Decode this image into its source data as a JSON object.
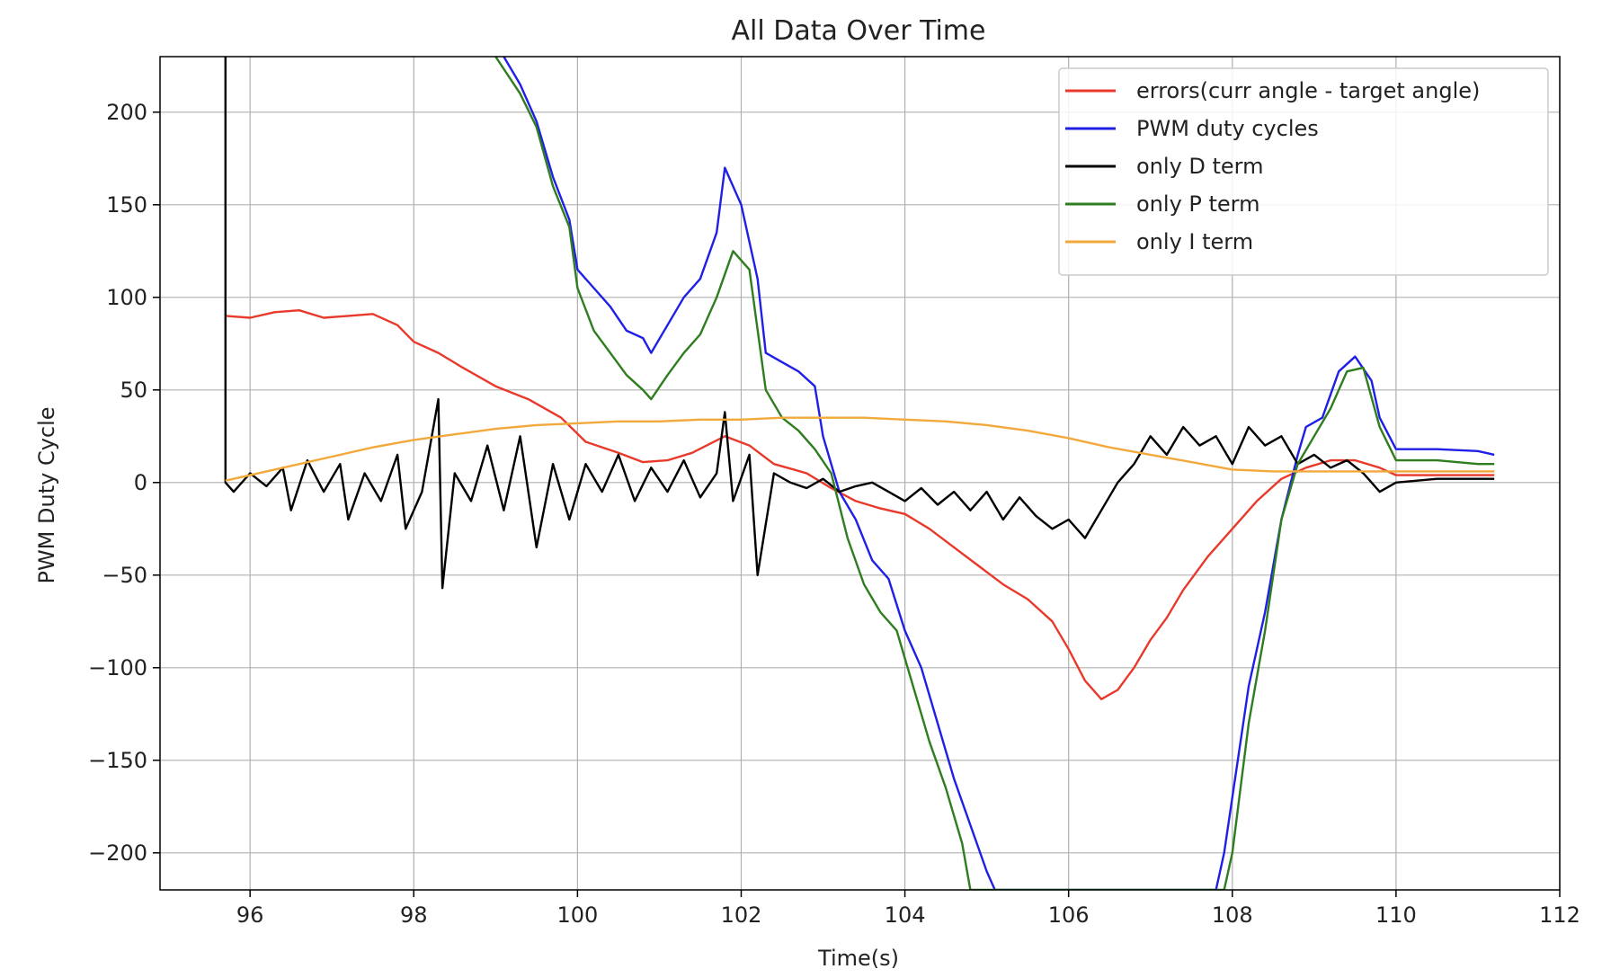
{
  "chart_data": {
    "type": "line",
    "title": "All Data Over Time",
    "xlabel": "Time(s)",
    "ylabel": "PWM Duty Cycle",
    "xlim": [
      94.9,
      112.0
    ],
    "ylim": [
      -220,
      230
    ],
    "xticks": [
      96,
      98,
      100,
      102,
      104,
      106,
      108,
      110,
      112
    ],
    "yticks": [
      200,
      150,
      100,
      50,
      0,
      -50,
      -100,
      -150,
      -200
    ],
    "ytick_labels": [
      "200",
      "150",
      "100",
      "50",
      "0",
      "−50",
      "−100",
      "−150",
      "−200"
    ],
    "grid": true,
    "legend_position": "top-right",
    "series": [
      {
        "name": "errors(curr angle - target angle)",
        "color": "#e8392b",
        "points": [
          [
            95.7,
            90
          ],
          [
            96.0,
            89
          ],
          [
            96.3,
            92
          ],
          [
            96.6,
            93
          ],
          [
            96.9,
            89
          ],
          [
            97.2,
            90
          ],
          [
            97.5,
            91
          ],
          [
            97.8,
            85
          ],
          [
            98.0,
            76
          ],
          [
            98.3,
            70
          ],
          [
            98.6,
            62
          ],
          [
            99.0,
            52
          ],
          [
            99.4,
            45
          ],
          [
            99.8,
            35
          ],
          [
            100.1,
            22
          ],
          [
            100.5,
            16
          ],
          [
            100.8,
            11
          ],
          [
            101.1,
            12
          ],
          [
            101.4,
            16
          ],
          [
            101.8,
            25
          ],
          [
            102.1,
            20
          ],
          [
            102.4,
            10
          ],
          [
            102.8,
            5
          ],
          [
            103.1,
            -3
          ],
          [
            103.4,
            -10
          ],
          [
            103.7,
            -14
          ],
          [
            104.0,
            -17
          ],
          [
            104.3,
            -25
          ],
          [
            104.6,
            -35
          ],
          [
            104.9,
            -45
          ],
          [
            105.2,
            -55
          ],
          [
            105.5,
            -63
          ],
          [
            105.8,
            -75
          ],
          [
            106.0,
            -90
          ],
          [
            106.2,
            -107
          ],
          [
            106.4,
            -117
          ],
          [
            106.6,
            -112
          ],
          [
            106.8,
            -100
          ],
          [
            107.0,
            -85
          ],
          [
            107.2,
            -73
          ],
          [
            107.4,
            -58
          ],
          [
            107.7,
            -40
          ],
          [
            108.0,
            -25
          ],
          [
            108.3,
            -10
          ],
          [
            108.6,
            2
          ],
          [
            108.9,
            8
          ],
          [
            109.2,
            12
          ],
          [
            109.5,
            12
          ],
          [
            109.8,
            8
          ],
          [
            110.0,
            4
          ],
          [
            110.5,
            4
          ],
          [
            111.0,
            4
          ],
          [
            111.2,
            4
          ]
        ]
      },
      {
        "name": "PWM duty cycles",
        "color": "#1f1fe6",
        "points": [
          [
            99.1,
            230
          ],
          [
            99.3,
            215
          ],
          [
            99.5,
            195
          ],
          [
            99.7,
            165
          ],
          [
            99.9,
            142
          ],
          [
            100.0,
            115
          ],
          [
            100.2,
            105
          ],
          [
            100.4,
            95
          ],
          [
            100.6,
            82
          ],
          [
            100.8,
            78
          ],
          [
            100.9,
            70
          ],
          [
            101.1,
            85
          ],
          [
            101.3,
            100
          ],
          [
            101.5,
            110
          ],
          [
            101.7,
            135
          ],
          [
            101.8,
            170
          ],
          [
            102.0,
            150
          ],
          [
            102.2,
            110
          ],
          [
            102.3,
            70
          ],
          [
            102.5,
            65
          ],
          [
            102.7,
            60
          ],
          [
            102.9,
            52
          ],
          [
            103.0,
            25
          ],
          [
            103.2,
            -5
          ],
          [
            103.4,
            -20
          ],
          [
            103.6,
            -42
          ],
          [
            103.8,
            -52
          ],
          [
            104.0,
            -80
          ],
          [
            104.2,
            -100
          ],
          [
            104.4,
            -130
          ],
          [
            104.6,
            -160
          ],
          [
            104.8,
            -185
          ],
          [
            105.0,
            -210
          ],
          [
            105.1,
            -220
          ],
          [
            107.8,
            -220
          ],
          [
            107.9,
            -200
          ],
          [
            108.0,
            -170
          ],
          [
            108.2,
            -110
          ],
          [
            108.4,
            -70
          ],
          [
            108.6,
            -20
          ],
          [
            108.8,
            15
          ],
          [
            108.9,
            30
          ],
          [
            109.1,
            35
          ],
          [
            109.3,
            60
          ],
          [
            109.5,
            68
          ],
          [
            109.7,
            55
          ],
          [
            109.8,
            35
          ],
          [
            110.0,
            18
          ],
          [
            110.5,
            18
          ],
          [
            111.0,
            17
          ],
          [
            111.2,
            15
          ]
        ]
      },
      {
        "name": "only D term",
        "color": "#000000",
        "points": [
          [
            95.7,
            230
          ],
          [
            95.7,
            0
          ],
          [
            95.8,
            -5
          ],
          [
            96.0,
            5
          ],
          [
            96.2,
            -2
          ],
          [
            96.4,
            8
          ],
          [
            96.5,
            -15
          ],
          [
            96.7,
            12
          ],
          [
            96.9,
            -5
          ],
          [
            97.1,
            10
          ],
          [
            97.2,
            -20
          ],
          [
            97.4,
            5
          ],
          [
            97.6,
            -10
          ],
          [
            97.8,
            15
          ],
          [
            97.9,
            -25
          ],
          [
            98.1,
            -5
          ],
          [
            98.3,
            45
          ],
          [
            98.35,
            -57
          ],
          [
            98.5,
            5
          ],
          [
            98.7,
            -10
          ],
          [
            98.9,
            20
          ],
          [
            99.1,
            -15
          ],
          [
            99.3,
            25
          ],
          [
            99.5,
            -35
          ],
          [
            99.7,
            10
          ],
          [
            99.9,
            -20
          ],
          [
            100.1,
            10
          ],
          [
            100.3,
            -5
          ],
          [
            100.5,
            15
          ],
          [
            100.7,
            -10
          ],
          [
            100.9,
            8
          ],
          [
            101.1,
            -5
          ],
          [
            101.3,
            12
          ],
          [
            101.5,
            -8
          ],
          [
            101.7,
            5
          ],
          [
            101.8,
            38
          ],
          [
            101.9,
            -10
          ],
          [
            102.1,
            15
          ],
          [
            102.2,
            -50
          ],
          [
            102.4,
            5
          ],
          [
            102.6,
            0
          ],
          [
            102.8,
            -3
          ],
          [
            103.0,
            2
          ],
          [
            103.2,
            -5
          ],
          [
            103.4,
            -2
          ],
          [
            103.6,
            0
          ],
          [
            103.8,
            -5
          ],
          [
            104.0,
            -10
          ],
          [
            104.2,
            -3
          ],
          [
            104.4,
            -12
          ],
          [
            104.6,
            -5
          ],
          [
            104.8,
            -15
          ],
          [
            105.0,
            -5
          ],
          [
            105.2,
            -20
          ],
          [
            105.4,
            -8
          ],
          [
            105.6,
            -18
          ],
          [
            105.8,
            -25
          ],
          [
            106.0,
            -20
          ],
          [
            106.2,
            -30
          ],
          [
            106.4,
            -15
          ],
          [
            106.6,
            0
          ],
          [
            106.8,
            10
          ],
          [
            107.0,
            25
          ],
          [
            107.2,
            15
          ],
          [
            107.4,
            30
          ],
          [
            107.6,
            20
          ],
          [
            107.8,
            25
          ],
          [
            108.0,
            10
          ],
          [
            108.2,
            30
          ],
          [
            108.4,
            20
          ],
          [
            108.6,
            25
          ],
          [
            108.8,
            10
          ],
          [
            109.0,
            15
          ],
          [
            109.2,
            8
          ],
          [
            109.4,
            12
          ],
          [
            109.6,
            5
          ],
          [
            109.8,
            -5
          ],
          [
            110.0,
            0
          ],
          [
            110.5,
            2
          ],
          [
            111.0,
            2
          ],
          [
            111.2,
            2
          ]
        ]
      },
      {
        "name": "only P term",
        "color": "#2e7d1e",
        "points": [
          [
            99.0,
            230
          ],
          [
            99.3,
            210
          ],
          [
            99.5,
            192
          ],
          [
            99.7,
            160
          ],
          [
            99.9,
            138
          ],
          [
            100.0,
            105
          ],
          [
            100.2,
            82
          ],
          [
            100.4,
            70
          ],
          [
            100.6,
            58
          ],
          [
            100.8,
            50
          ],
          [
            100.9,
            45
          ],
          [
            101.1,
            58
          ],
          [
            101.3,
            70
          ],
          [
            101.5,
            80
          ],
          [
            101.7,
            100
          ],
          [
            101.9,
            125
          ],
          [
            102.1,
            115
          ],
          [
            102.3,
            50
          ],
          [
            102.5,
            35
          ],
          [
            102.7,
            28
          ],
          [
            102.9,
            18
          ],
          [
            103.1,
            5
          ],
          [
            103.3,
            -30
          ],
          [
            103.5,
            -55
          ],
          [
            103.7,
            -70
          ],
          [
            103.9,
            -80
          ],
          [
            104.1,
            -110
          ],
          [
            104.3,
            -140
          ],
          [
            104.5,
            -165
          ],
          [
            104.7,
            -195
          ],
          [
            104.8,
            -220
          ],
          [
            107.9,
            -220
          ],
          [
            108.0,
            -200
          ],
          [
            108.2,
            -130
          ],
          [
            108.4,
            -80
          ],
          [
            108.6,
            -20
          ],
          [
            108.8,
            10
          ],
          [
            109.0,
            25
          ],
          [
            109.2,
            40
          ],
          [
            109.4,
            60
          ],
          [
            109.6,
            62
          ],
          [
            109.8,
            30
          ],
          [
            110.0,
            12
          ],
          [
            110.5,
            12
          ],
          [
            111.0,
            10
          ],
          [
            111.2,
            10
          ]
        ]
      },
      {
        "name": "only I term",
        "color": "#f2a93b",
        "points": [
          [
            95.7,
            1
          ],
          [
            96.0,
            4
          ],
          [
            96.5,
            9
          ],
          [
            97.0,
            14
          ],
          [
            97.5,
            19
          ],
          [
            98.0,
            23
          ],
          [
            98.5,
            26
          ],
          [
            99.0,
            29
          ],
          [
            99.5,
            31
          ],
          [
            100.0,
            32
          ],
          [
            100.5,
            33
          ],
          [
            101.0,
            33
          ],
          [
            101.5,
            34
          ],
          [
            102.0,
            34
          ],
          [
            102.5,
            35
          ],
          [
            103.0,
            35
          ],
          [
            103.5,
            35
          ],
          [
            104.0,
            34
          ],
          [
            104.5,
            33
          ],
          [
            105.0,
            31
          ],
          [
            105.5,
            28
          ],
          [
            106.0,
            24
          ],
          [
            106.5,
            19
          ],
          [
            107.0,
            15
          ],
          [
            107.5,
            11
          ],
          [
            108.0,
            7
          ],
          [
            108.5,
            6
          ],
          [
            109.0,
            6
          ],
          [
            109.5,
            6
          ],
          [
            110.0,
            6
          ],
          [
            110.5,
            6
          ],
          [
            111.0,
            6
          ],
          [
            111.2,
            6
          ]
        ]
      }
    ]
  }
}
